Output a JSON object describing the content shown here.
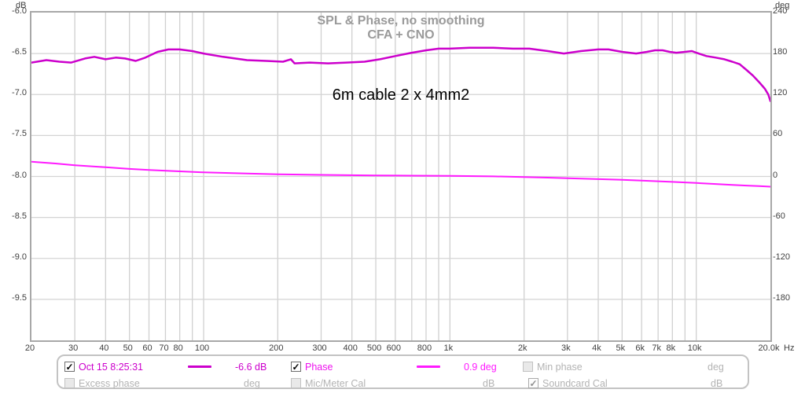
{
  "chart_data": {
    "type": "line",
    "title": "SPL & Phase, no smoothing",
    "subtitle": "CFA + CNO",
    "annotation": "6m cable 2 x 4mm2",
    "grid": true,
    "x_axis": {
      "unit": "Hz",
      "scale": "log",
      "min": 20,
      "max": 20000,
      "gridlines": [
        20,
        30,
        40,
        50,
        60,
        70,
        80,
        90,
        100,
        200,
        300,
        400,
        500,
        600,
        700,
        800,
        900,
        1000,
        2000,
        3000,
        4000,
        5000,
        6000,
        7000,
        8000,
        9000,
        10000,
        20000
      ],
      "tick_labels": [
        {
          "f": 20,
          "label": "20"
        },
        {
          "f": 30,
          "label": "30"
        },
        {
          "f": 40,
          "label": "40"
        },
        {
          "f": 50,
          "label": "50"
        },
        {
          "f": 60,
          "label": "60"
        },
        {
          "f": 70,
          "label": "70"
        },
        {
          "f": 80,
          "label": "80"
        },
        {
          "f": 100,
          "label": "100"
        },
        {
          "f": 200,
          "label": "200"
        },
        {
          "f": 300,
          "label": "300"
        },
        {
          "f": 400,
          "label": "400"
        },
        {
          "f": 500,
          "label": "500"
        },
        {
          "f": 600,
          "label": "600"
        },
        {
          "f": 800,
          "label": "800"
        },
        {
          "f": 1000,
          "label": "1k"
        },
        {
          "f": 2000,
          "label": "2k"
        },
        {
          "f": 3000,
          "label": "3k"
        },
        {
          "f": 4000,
          "label": "4k"
        },
        {
          "f": 5000,
          "label": "5k"
        },
        {
          "f": 6000,
          "label": "6k"
        },
        {
          "f": 7000,
          "label": "7k"
        },
        {
          "f": 8000,
          "label": "8k"
        },
        {
          "f": 10000,
          "label": "10k"
        },
        {
          "f": 20000,
          "label": "20.0k"
        }
      ]
    },
    "left_axis": {
      "unit": "dB",
      "max": -6.0,
      "min": -10.0,
      "ticks": [
        {
          "v": -6.0,
          "label": "-6.0"
        },
        {
          "v": -6.5,
          "label": "-6.5"
        },
        {
          "v": -7.0,
          "label": "-7.0"
        },
        {
          "v": -7.5,
          "label": "-7.5"
        },
        {
          "v": -8.0,
          "label": "-8.0"
        },
        {
          "v": -8.5,
          "label": "-8.5"
        },
        {
          "v": -9.0,
          "label": "-9.0"
        },
        {
          "v": -9.5,
          "label": "-9.5"
        }
      ]
    },
    "right_axis": {
      "unit": "deg",
      "max": 240,
      "min": -240,
      "ticks": [
        {
          "v": 240,
          "label": "240"
        },
        {
          "v": 180,
          "label": "180"
        },
        {
          "v": 120,
          "label": "120"
        },
        {
          "v": 60,
          "label": "60"
        },
        {
          "v": 0,
          "label": "0"
        },
        {
          "v": -60,
          "label": "-60"
        },
        {
          "v": -120,
          "label": "-120"
        },
        {
          "v": -180,
          "label": "-180"
        }
      ]
    },
    "series": [
      {
        "name": "spl-trace",
        "legend": "Oct 15 8:25:31",
        "axis": "left",
        "color": "#cc00cc",
        "width": 2.5,
        "points": [
          [
            20,
            -6.61
          ],
          [
            23,
            -6.58
          ],
          [
            26,
            -6.6
          ],
          [
            29,
            -6.61
          ],
          [
            33,
            -6.56
          ],
          [
            36,
            -6.54
          ],
          [
            40,
            -6.57
          ],
          [
            44,
            -6.55
          ],
          [
            48,
            -6.56
          ],
          [
            53,
            -6.59
          ],
          [
            58,
            -6.55
          ],
          [
            65,
            -6.48
          ],
          [
            72,
            -6.45
          ],
          [
            80,
            -6.45
          ],
          [
            90,
            -6.47
          ],
          [
            100,
            -6.5
          ],
          [
            120,
            -6.54
          ],
          [
            150,
            -6.58
          ],
          [
            180,
            -6.59
          ],
          [
            210,
            -6.6
          ],
          [
            226,
            -6.57
          ],
          [
            234,
            -6.62
          ],
          [
            270,
            -6.61
          ],
          [
            320,
            -6.62
          ],
          [
            380,
            -6.61
          ],
          [
            450,
            -6.6
          ],
          [
            520,
            -6.57
          ],
          [
            600,
            -6.53
          ],
          [
            700,
            -6.49
          ],
          [
            800,
            -6.46
          ],
          [
            900,
            -6.44
          ],
          [
            1000,
            -6.44
          ],
          [
            1200,
            -6.43
          ],
          [
            1500,
            -6.43
          ],
          [
            1800,
            -6.44
          ],
          [
            2100,
            -6.44
          ],
          [
            2500,
            -6.47
          ],
          [
            2900,
            -6.5
          ],
          [
            3400,
            -6.47
          ],
          [
            4000,
            -6.45
          ],
          [
            4400,
            -6.45
          ],
          [
            5000,
            -6.48
          ],
          [
            5700,
            -6.5
          ],
          [
            6300,
            -6.48
          ],
          [
            6800,
            -6.46
          ],
          [
            7300,
            -6.46
          ],
          [
            7800,
            -6.48
          ],
          [
            8300,
            -6.49
          ],
          [
            9000,
            -6.48
          ],
          [
            9600,
            -6.47
          ],
          [
            10000,
            -6.49
          ],
          [
            11000,
            -6.53
          ],
          [
            12000,
            -6.55
          ],
          [
            13000,
            -6.57
          ],
          [
            14000,
            -6.6
          ],
          [
            15000,
            -6.63
          ],
          [
            16000,
            -6.7
          ],
          [
            17000,
            -6.77
          ],
          [
            18000,
            -6.85
          ],
          [
            19000,
            -6.93
          ],
          [
            19600,
            -7.0
          ],
          [
            20000,
            -7.08
          ]
        ]
      },
      {
        "name": "phase-trace",
        "legend": "Phase",
        "axis": "right",
        "color": "#ff1aff",
        "width": 2,
        "points": [
          [
            20,
            21.5
          ],
          [
            25,
            19.0
          ],
          [
            30,
            16.5
          ],
          [
            40,
            13.5
          ],
          [
            50,
            11.0
          ],
          [
            60,
            9.5
          ],
          [
            80,
            7.5
          ],
          [
            100,
            6.0
          ],
          [
            150,
            4.3
          ],
          [
            200,
            3.2
          ],
          [
            300,
            2.3
          ],
          [
            500,
            1.5
          ],
          [
            700,
            1.1
          ],
          [
            1000,
            0.9
          ],
          [
            1500,
            0.1
          ],
          [
            2000,
            -0.8
          ],
          [
            2500,
            -1.7
          ],
          [
            3000,
            -2.5
          ],
          [
            4000,
            -3.9
          ],
          [
            5000,
            -5.0
          ],
          [
            6000,
            -6.0
          ],
          [
            7000,
            -7.0
          ],
          [
            8000,
            -7.9
          ],
          [
            9000,
            -8.7
          ],
          [
            10000,
            -9.5
          ],
          [
            12000,
            -11.0
          ],
          [
            14000,
            -12.3
          ],
          [
            16000,
            -13.3
          ],
          [
            18000,
            -14.2
          ],
          [
            20000,
            -15.0
          ]
        ]
      }
    ]
  },
  "legend": {
    "rows": [
      [
        {
          "type": "checkbox",
          "checked": true,
          "disabled": false,
          "name": "measurement-visible-checkbox"
        },
        {
          "type": "label",
          "text": "Oct 15 8:25:31",
          "color": "#cc00cc",
          "name": "measurement-name"
        },
        {
          "type": "swatch",
          "color": "#cc00cc",
          "name": "measurement-trace-swatch"
        },
        {
          "type": "value",
          "text": "-6.6 dB",
          "color": "#cc00cc",
          "name": "measurement-cursor-value"
        },
        {
          "type": "checkbox",
          "checked": true,
          "disabled": false,
          "name": "phase-visible-checkbox"
        },
        {
          "type": "label",
          "text": "Phase",
          "color": "#ee11ee",
          "name": "phase-label"
        },
        {
          "type": "swatch",
          "color": "#ff1aff",
          "name": "phase-trace-swatch"
        },
        {
          "type": "value",
          "text": "0.9 deg",
          "color": "#ff1aff",
          "name": "phase-cursor-value"
        },
        {
          "type": "checkbox",
          "checked": false,
          "disabled": true,
          "name": "min-phase-checkbox"
        },
        {
          "type": "label",
          "text": "Min phase",
          "color": "#b3b3b3",
          "name": "min-phase-label"
        },
        {
          "type": "value",
          "text": "deg",
          "color": "#b3b3b3",
          "name": "min-phase-unit"
        }
      ],
      [
        {
          "type": "checkbox",
          "checked": false,
          "disabled": true,
          "name": "excess-phase-checkbox"
        },
        {
          "type": "label",
          "text": "Excess phase",
          "color": "#b3b3b3",
          "name": "excess-phase-label"
        },
        {
          "type": "value",
          "text": "deg",
          "color": "#b3b3b3",
          "name": "excess-phase-unit"
        },
        {
          "type": "checkbox",
          "checked": false,
          "disabled": true,
          "name": "mic-meter-cal-checkbox"
        },
        {
          "type": "label",
          "text": "Mic/Meter Cal",
          "color": "#b3b3b3",
          "name": "mic-meter-cal-label"
        },
        {
          "type": "value",
          "text": "dB",
          "color": "#b3b3b3",
          "name": "mic-meter-cal-unit"
        },
        {
          "type": "checkbox",
          "checked": true,
          "disabled": true,
          "name": "soundcard-cal-checkbox"
        },
        {
          "type": "label",
          "text": "Soundcard Cal",
          "color": "#b3b3b3",
          "name": "soundcard-cal-label"
        },
        {
          "type": "value",
          "text": "dB",
          "color": "#b3b3b3",
          "name": "soundcard-cal-unit"
        }
      ]
    ]
  }
}
